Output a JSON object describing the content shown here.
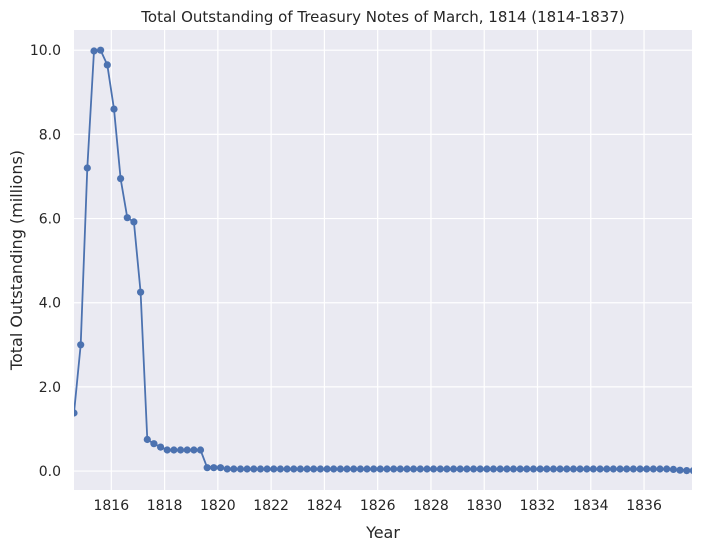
{
  "chart_data": {
    "type": "line",
    "title": "Total Outstanding of Treasury Notes of March, 1814 (1814-1837)",
    "xlabel": "Year",
    "ylabel": "Total Outstanding (millions)",
    "xlim": [
      1814.6,
      1837.8
    ],
    "ylim": [
      -0.45,
      10.48
    ],
    "x_ticks": [
      "1816",
      "1818",
      "1820",
      "1822",
      "1824",
      "1826",
      "1828",
      "1830",
      "1832",
      "1834",
      "1836"
    ],
    "y_ticks": [
      "0.0",
      "2.0",
      "4.0",
      "6.0",
      "8.0",
      "10.0"
    ],
    "grid": true,
    "series": [
      {
        "color": "#4c72b0",
        "x": [
          1814.6,
          1814.85,
          1815.1,
          1815.35,
          1815.6,
          1815.85,
          1816.1,
          1816.35,
          1816.6,
          1816.85,
          1817.1,
          1817.35,
          1817.6,
          1817.85,
          1818.1,
          1818.35,
          1818.6,
          1818.85,
          1819.1,
          1819.35,
          1819.6,
          1819.85,
          1820.1,
          1820.35,
          1820.6,
          1820.85,
          1821.1,
          1821.35,
          1821.6,
          1821.85,
          1822.1,
          1822.35,
          1822.6,
          1822.85,
          1823.1,
          1823.35,
          1823.6,
          1823.85,
          1824.1,
          1824.35,
          1824.6,
          1824.85,
          1825.1,
          1825.35,
          1825.6,
          1825.85,
          1826.1,
          1826.35,
          1826.6,
          1826.85,
          1827.1,
          1827.35,
          1827.6,
          1827.85,
          1828.1,
          1828.35,
          1828.6,
          1828.85,
          1829.1,
          1829.35,
          1829.6,
          1829.85,
          1830.1,
          1830.35,
          1830.6,
          1830.85,
          1831.1,
          1831.35,
          1831.6,
          1831.85,
          1832.1,
          1832.35,
          1832.6,
          1832.85,
          1833.1,
          1833.35,
          1833.6,
          1833.85,
          1834.1,
          1834.35,
          1834.6,
          1834.85,
          1835.1,
          1835.35,
          1835.6,
          1835.85,
          1836.1,
          1836.35,
          1836.6,
          1836.85,
          1837.1,
          1837.35,
          1837.6,
          1837.85
        ],
        "y": [
          1.38,
          3.0,
          7.2,
          9.98,
          10.0,
          9.65,
          8.6,
          6.95,
          6.02,
          5.92,
          4.25,
          0.75,
          0.65,
          0.57,
          0.5,
          0.5,
          0.5,
          0.5,
          0.5,
          0.5,
          0.08,
          0.08,
          0.08,
          0.05,
          0.05,
          0.05,
          0.05,
          0.05,
          0.05,
          0.05,
          0.05,
          0.05,
          0.05,
          0.05,
          0.05,
          0.05,
          0.05,
          0.05,
          0.05,
          0.05,
          0.05,
          0.05,
          0.05,
          0.05,
          0.05,
          0.05,
          0.05,
          0.05,
          0.05,
          0.05,
          0.05,
          0.05,
          0.05,
          0.05,
          0.05,
          0.05,
          0.05,
          0.05,
          0.05,
          0.05,
          0.05,
          0.05,
          0.05,
          0.05,
          0.05,
          0.05,
          0.05,
          0.05,
          0.05,
          0.05,
          0.05,
          0.05,
          0.05,
          0.05,
          0.05,
          0.05,
          0.05,
          0.05,
          0.05,
          0.05,
          0.05,
          0.05,
          0.05,
          0.05,
          0.05,
          0.05,
          0.05,
          0.05,
          0.05,
          0.05,
          0.04,
          0.02,
          0.01,
          0.01
        ]
      }
    ]
  }
}
